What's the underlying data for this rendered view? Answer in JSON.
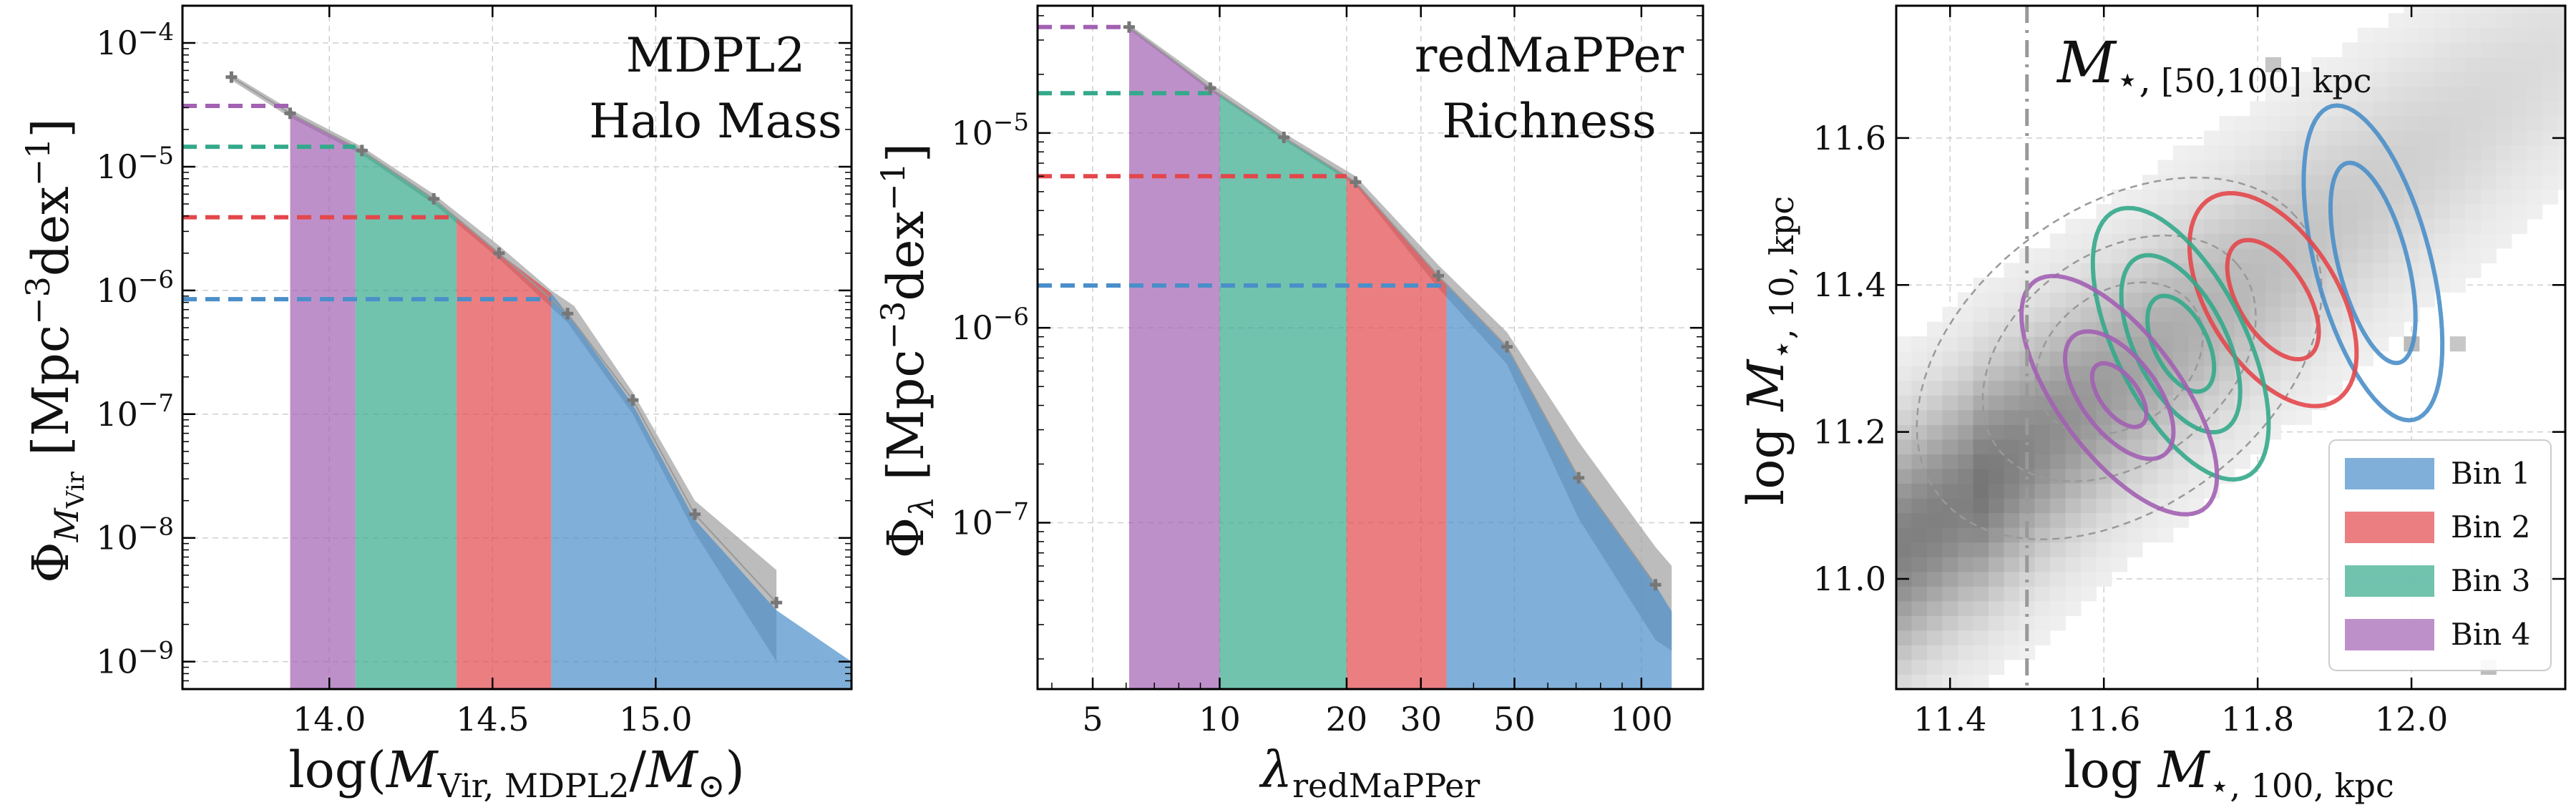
{
  "colors": {
    "bin1": "#4A8FC9",
    "bin2": "#E3474B",
    "bin3": "#34A98B",
    "bin4": "#A261B3",
    "envelope": "#A6A6A6",
    "points": "#777777"
  },
  "chart_data": [
    {
      "type": "area",
      "annotation": [
        "MDPL2",
        "Halo Mass"
      ],
      "xlabel": "log(M_Vir, MDPL2/M_⊙)",
      "ylabel": "Φ_M_Vir [Mpc^-3 dex^-1]",
      "x_scale": "linear",
      "y_scale": "log",
      "xlim": [
        13.55,
        15.6
      ],
      "ylim": [
        6e-10,
        0.0002
      ],
      "xticks": [
        14.0,
        14.5,
        15.0
      ],
      "xtick_labels": [
        "14.0",
        "14.5",
        "15.0"
      ],
      "yticks": [
        1e-09,
        1e-08,
        1e-07,
        1e-06,
        1e-05,
        0.0001
      ],
      "ytick_labels": [
        "10^-9",
        "10^-8",
        "10^-7",
        "10^-6",
        "10^-5",
        "10^-4"
      ],
      "grid": true,
      "points": {
        "x": [
          13.7,
          13.88,
          14.1,
          14.32,
          14.52,
          14.73,
          14.93,
          15.12,
          15.37
        ],
        "y": [
          5.3e-05,
          2.7e-05,
          1.35e-05,
          5.5e-06,
          2e-06,
          6.5e-07,
          1.3e-07,
          1.55e-08,
          3e-09
        ]
      },
      "envelope": {
        "x": [
          13.7,
          13.88,
          14.1,
          14.32,
          14.52,
          14.68,
          14.75,
          14.93,
          15.12,
          15.37,
          15.37,
          15.12,
          14.93,
          14.73,
          14.52,
          14.32,
          14.1,
          13.88,
          13.7
        ],
        "y": [
          5.6e-05,
          2.9e-05,
          1.45e-05,
          6e-06,
          2.3e-06,
          1e-06,
          7.5e-07,
          1.5e-07,
          2e-08,
          5.5e-09,
          1e-09,
          1.1e-08,
          1e-07,
          5.5e-07,
          1.8e-06,
          5e-06,
          1.25e-05,
          2.5e-05,
          5e-05
        ]
      },
      "bins": [
        {
          "name": "Bin 4",
          "x_range": [
            13.88,
            14.08
          ],
          "threshold": 3.1e-05
        },
        {
          "name": "Bin 3",
          "x_range": [
            14.08,
            14.39
          ],
          "threshold": 1.45e-05
        },
        {
          "name": "Bin 2",
          "x_range": [
            14.39,
            14.68
          ],
          "threshold": 3.9e-06
        },
        {
          "name": "Bin 1",
          "x_range": [
            14.68,
            15.6
          ],
          "threshold": 8.5e-07
        }
      ],
      "fill_curve": {
        "x": [
          13.88,
          14.1,
          14.32,
          14.52,
          14.68,
          14.73,
          14.93,
          15.12,
          15.37,
          15.6
        ],
        "y": [
          2.7e-05,
          1.35e-05,
          5.5e-06,
          2e-06,
          9.5e-07,
          6.5e-07,
          1.2e-07,
          1.4e-08,
          2.6e-09,
          1e-09
        ]
      }
    },
    {
      "type": "area",
      "annotation": [
        "redMaPPer",
        "Richness"
      ],
      "xlabel": "λ_redMaPPer",
      "ylabel": "Φ_λ [Mpc^-3 dex^-1]",
      "x_scale": "log",
      "y_scale": "log",
      "xlim": [
        3.7,
        140
      ],
      "ylim": [
        1.4e-08,
        4.5e-05
      ],
      "xticks": [
        5,
        10,
        20,
        30,
        50,
        100
      ],
      "xtick_labels": [
        "5",
        "10",
        "20",
        "30",
        "50",
        "100"
      ],
      "yticks": [
        1e-07,
        1e-06,
        1e-05
      ],
      "ytick_labels": [
        "10^-7",
        "10^-6",
        "10^-5"
      ],
      "grid": true,
      "points": {
        "x": [
          6.1,
          9.5,
          14.2,
          21.0,
          33.0,
          48.0,
          71.0,
          108.0
        ],
        "y": [
          3.5e-05,
          1.7e-05,
          9.5e-06,
          5.6e-06,
          1.85e-06,
          8e-07,
          1.7e-07,
          4.8e-08
        ]
      },
      "envelope": {
        "x": [
          6.1,
          9.5,
          14.2,
          21.0,
          33.0,
          48.0,
          71.0,
          108.0,
          118.0,
          118.0,
          108.0,
          71.0,
          48.0,
          33.0,
          21.0,
          14.2,
          9.5,
          6.1
        ],
        "y": [
          3.6e-05,
          1.8e-05,
          1e-05,
          6e-06,
          2.1e-06,
          9.5e-07,
          2.6e-07,
          7.5e-08,
          6e-08,
          2.2e-08,
          2.5e-08,
          1.05e-07,
          6.5e-07,
          1.6e-06,
          5.4e-06,
          9.2e-06,
          1.65e-05,
          3.4e-05
        ]
      },
      "bins": [
        {
          "name": "Bin 4",
          "x_range": [
            6.1,
            10.0
          ],
          "threshold": 3.5e-05
        },
        {
          "name": "Bin 3",
          "x_range": [
            10.0,
            20.0
          ],
          "threshold": 1.6e-05
        },
        {
          "name": "Bin 2",
          "x_range": [
            20.0,
            34.5
          ],
          "threshold": 6e-06
        },
        {
          "name": "Bin 1",
          "x_range": [
            34.5,
            118.0
          ],
          "threshold": 1.65e-06
        }
      ],
      "fill_curve": {
        "x": [
          6.1,
          9.5,
          14.2,
          21.0,
          33.0,
          48.0,
          71.0,
          108.0,
          118.0
        ],
        "y": [
          3.5e-05,
          1.7e-05,
          9.5e-06,
          5.6e-06,
          1.85e-06,
          8e-07,
          1.7e-07,
          4.8e-08,
          3.5e-08
        ]
      }
    },
    {
      "type": "scatter",
      "annotation": "M_⋆, [50,100] kpc",
      "xlabel": "log M_⋆, 100, kpc",
      "ylabel": "log M_⋆, 10, kpc",
      "xlim": [
        11.33,
        12.2
      ],
      "ylim": [
        10.85,
        11.78
      ],
      "xticks": [
        11.4,
        11.6,
        11.8,
        12.0
      ],
      "xtick_labels": [
        "11.4",
        "11.6",
        "11.8",
        "12.0"
      ],
      "yticks": [
        11.0,
        11.2,
        11.4,
        11.6
      ],
      "ytick_labels": [
        "11.0",
        "11.2",
        "11.4",
        "11.6"
      ],
      "grid": true,
      "vline_x": 11.5,
      "legend": {
        "position": "lower-right",
        "entries": [
          {
            "label": "Bin 1",
            "color_key": "bin1"
          },
          {
            "label": "Bin 2",
            "color_key": "bin2"
          },
          {
            "label": "Bin 3",
            "color_key": "bin3"
          },
          {
            "label": "Bin 4",
            "color_key": "bin4"
          }
        ]
      },
      "contours": [
        {
          "name": "Bin 1",
          "center": [
            11.95,
            11.43
          ],
          "levels": [
            {
              "rx": 0.045,
              "ry": 0.14,
              "rot": 14
            },
            {
              "rx": 0.075,
              "ry": 0.22,
              "rot": 14
            }
          ]
        },
        {
          "name": "Bin 2",
          "center": [
            11.82,
            11.38
          ],
          "levels": [
            {
              "rx": 0.045,
              "ry": 0.09,
              "rot": 30
            },
            {
              "rx": 0.085,
              "ry": 0.16,
              "rot": 30
            }
          ]
        },
        {
          "name": "Bin 3",
          "center": [
            11.7,
            11.32
          ],
          "levels": [
            {
              "rx": 0.035,
              "ry": 0.07,
              "rot": 25
            },
            {
              "rx": 0.06,
              "ry": 0.13,
              "rot": 25
            },
            {
              "rx": 0.085,
              "ry": 0.2,
              "rot": 25
            }
          ]
        },
        {
          "name": "Bin 4",
          "center": [
            11.62,
            11.25
          ],
          "levels": [
            {
              "rx": 0.025,
              "ry": 0.05,
              "rot": 35
            },
            {
              "rx": 0.05,
              "ry": 0.1,
              "rot": 35
            },
            {
              "rx": 0.08,
              "ry": 0.19,
              "rot": 35
            }
          ]
        }
      ]
    }
  ]
}
